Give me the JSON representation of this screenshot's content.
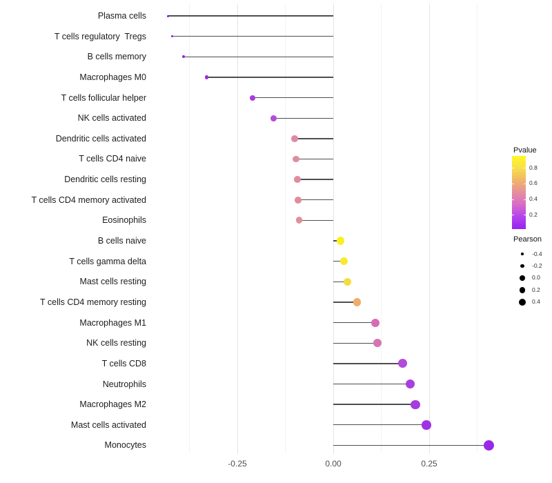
{
  "chart_data": {
    "type": "scatter",
    "variant": "lollipop",
    "title": "",
    "xlabel": "",
    "ylabel": "",
    "grid": "vertical-only",
    "background": "#ffffff",
    "stem_color": "#4d4d4d",
    "gridline_major_color": "#e4e4e4",
    "gridline_minor_color": "#f2f2f2",
    "xlim": [
      -0.47,
      0.45
    ],
    "x_major_ticks": {
      "values": [
        -0.25,
        0,
        0.25
      ],
      "labels": [
        "-0.25",
        "0.00",
        "0.25"
      ]
    },
    "x_minor_ticks": [
      -0.375,
      -0.125,
      0.125,
      0.375
    ],
    "points": [
      {
        "label": "Plasma cells",
        "pearson": -0.43,
        "pvalue_approx": 0.05,
        "color": "#821CE4"
      },
      {
        "label": "T cells regulatory  Tregs",
        "pearson": -0.42,
        "pvalue_approx": 0.05,
        "color": "#851EE4"
      },
      {
        "label": "B cells memory",
        "pearson": -0.39,
        "pvalue_approx": 0.07,
        "color": "#8E26E4"
      },
      {
        "label": "Macrophages M0",
        "pearson": -0.33,
        "pvalue_approx": 0.09,
        "color": "#9730E2"
      },
      {
        "label": "T cells follicular helper",
        "pearson": -0.21,
        "pvalue_approx": 0.12,
        "color": "#A83BE0"
      },
      {
        "label": "NK cells activated",
        "pearson": -0.155,
        "pvalue_approx": 0.2,
        "color": "#B54CD8"
      },
      {
        "label": "Dendritic cells activated",
        "pearson": -0.101,
        "pvalue_approx": 0.45,
        "color": "#DE8BA4"
      },
      {
        "label": "T cells CD4 naive",
        "pearson": -0.097,
        "pvalue_approx": 0.45,
        "color": "#E08C9F"
      },
      {
        "label": "Dendritic cells resting",
        "pearson": -0.094,
        "pvalue_approx": 0.45,
        "color": "#E08C9C"
      },
      {
        "label": "T cells CD4 memory activated",
        "pearson": -0.092,
        "pvalue_approx": 0.45,
        "color": "#E08D9B"
      },
      {
        "label": "Eosinophils",
        "pearson": -0.089,
        "pvalue_approx": 0.45,
        "color": "#E18F98"
      },
      {
        "label": "B cells naive",
        "pearson": 0.019,
        "pvalue_approx": 0.9,
        "color": "#F8EF25"
      },
      {
        "label": "T cells gamma delta",
        "pearson": 0.028,
        "pvalue_approx": 0.85,
        "color": "#F7EA2C"
      },
      {
        "label": "Mast cells resting",
        "pearson": 0.037,
        "pvalue_approx": 0.8,
        "color": "#F5DD3A"
      },
      {
        "label": "T cells CD4 memory resting",
        "pearson": 0.062,
        "pvalue_approx": 0.6,
        "color": "#EFAD68"
      },
      {
        "label": "Macrophages M1",
        "pearson": 0.109,
        "pvalue_approx": 0.35,
        "color": "#D56CB4"
      },
      {
        "label": "NK cells resting",
        "pearson": 0.115,
        "pvalue_approx": 0.35,
        "color": "#D675B2"
      },
      {
        "label": "T cells CD8",
        "pearson": 0.181,
        "pvalue_approx": 0.15,
        "color": "#B04BDC"
      },
      {
        "label": "Neutrophils",
        "pearson": 0.201,
        "pvalue_approx": 0.12,
        "color": "#A83EE0"
      },
      {
        "label": "Macrophages M2",
        "pearson": 0.214,
        "pvalue_approx": 0.12,
        "color": "#A63CE0"
      },
      {
        "label": "Mast cells activated",
        "pearson": 0.243,
        "pvalue_approx": 0.1,
        "color": "#9F33E2"
      },
      {
        "label": "Monocytes",
        "pearson": 0.405,
        "pvalue_approx": 0.04,
        "color": "#9929E6"
      }
    ],
    "legend_pvalue": {
      "title": "Pvalue",
      "tick_labels": [
        "0.8",
        "0.6",
        "0.4",
        "0.2"
      ],
      "tick_values": [
        0.8,
        0.6,
        0.4,
        0.2
      ],
      "range_top_to_bottom": [
        0.95,
        0.02
      ],
      "gradient_top_to_bottom": [
        "#FDF926",
        "#F9DE4B",
        "#F0B568",
        "#E68F9E",
        "#D76BC8",
        "#B344EC",
        "#9722F0"
      ]
    },
    "legend_pearson": {
      "title": "Pearson",
      "tick_labels": [
        "-0.4",
        "-0.2",
        "0.0",
        "0.2",
        "0.4"
      ],
      "tick_values": [
        -0.4,
        -0.2,
        0.0,
        0.2,
        0.4
      ],
      "dot_color": "#000000"
    }
  }
}
